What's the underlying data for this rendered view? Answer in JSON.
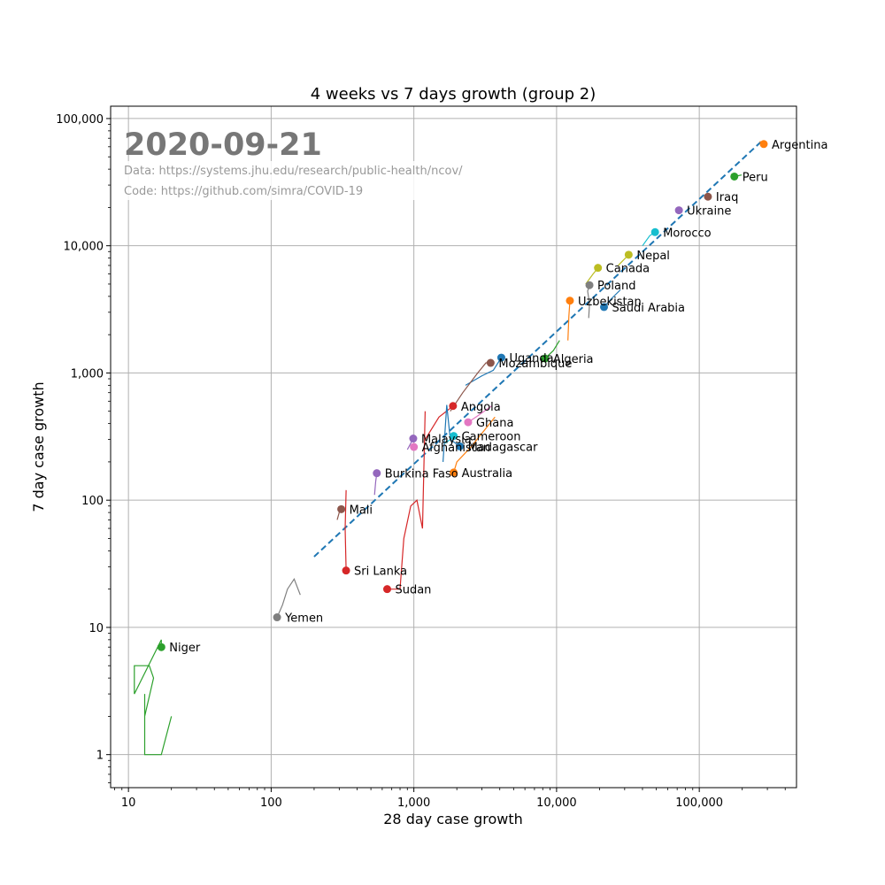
{
  "chart_data": {
    "type": "scatter",
    "title": "4 weeks vs 7 days growth (group 2)",
    "xlabel": "28 day case growth",
    "ylabel": "7 day case growth",
    "x_scale": "log",
    "y_scale": "log",
    "xlim": [
      7.5,
      480000
    ],
    "ylim": [
      0.55,
      125000
    ],
    "grid": true,
    "x_ticks": [
      10,
      100,
      1000,
      10000,
      100000
    ],
    "x_tick_labels": [
      "10",
      "100",
      "1,000",
      "10,000",
      "100,000"
    ],
    "y_ticks": [
      1,
      10,
      100,
      1000,
      10000,
      100000
    ],
    "y_tick_labels": [
      "1",
      "10",
      "100",
      "1,000",
      "10,000",
      "100,000"
    ],
    "annotations": {
      "date": "2020-09-21",
      "data_source": "Data: https://systems.jhu.edu/research/public-health/ncov/",
      "code_source": "Code: https://github.com/simra/COVID-19"
    },
    "trend_line": {
      "x": [
        200,
        280000
      ],
      "y": [
        36,
        68000
      ],
      "color": "#1f77b4",
      "style": "dashed"
    },
    "series": [
      {
        "name": "Argentina",
        "x": 283000,
        "y": 63000,
        "color": "#ff7f0e",
        "trail": [
          [
            265000,
            66000
          ],
          [
            283000,
            63000
          ]
        ]
      },
      {
        "name": "Peru",
        "x": 176000,
        "y": 35000,
        "color": "#2ca02c",
        "trail": [
          [
            198000,
            36000
          ],
          [
            176000,
            35000
          ]
        ]
      },
      {
        "name": "Iraq",
        "x": 115000,
        "y": 24300,
        "color": "#8c564b",
        "trail": [
          [
            112000,
            24000
          ],
          [
            115000,
            24300
          ]
        ]
      },
      {
        "name": "Ukraine",
        "x": 72000,
        "y": 19000,
        "color": "#9467bd",
        "trail": [
          [
            70000,
            18500
          ],
          [
            72000,
            19000
          ]
        ]
      },
      {
        "name": "Morocco",
        "x": 49000,
        "y": 12800,
        "color": "#17becf",
        "trail": [
          [
            40000,
            10000
          ],
          [
            45000,
            12000
          ],
          [
            49000,
            12800
          ]
        ]
      },
      {
        "name": "Nepal",
        "x": 32000,
        "y": 8500,
        "color": "#bcbd22",
        "trail": [
          [
            27000,
            7000
          ],
          [
            32000,
            8500
          ]
        ]
      },
      {
        "name": "Canada",
        "x": 19500,
        "y": 6700,
        "color": "#bcbd22",
        "trail": [
          [
            16000,
            5000
          ],
          [
            18000,
            6000
          ],
          [
            19500,
            6700
          ]
        ]
      },
      {
        "name": "Poland",
        "x": 17000,
        "y": 4900,
        "color": "#7f7f7f",
        "trail": [
          [
            16800,
            2700
          ],
          [
            17000,
            3500
          ],
          [
            16500,
            4400
          ],
          [
            17000,
            4900
          ]
        ]
      },
      {
        "name": "Uzbekistan",
        "x": 12400,
        "y": 3700,
        "color": "#ff7f0e",
        "trail": [
          [
            12000,
            1800
          ],
          [
            12200,
            2800
          ],
          [
            12400,
            3700
          ]
        ]
      },
      {
        "name": "Saudi Arabia",
        "x": 21500,
        "y": 3300,
        "color": "#1f77b4",
        "trail": [
          [
            28000,
            4500
          ],
          [
            24000,
            3800
          ],
          [
            21500,
            3300
          ]
        ]
      },
      {
        "name": "Algeria",
        "x": 8300,
        "y": 1300,
        "color": "#2ca02c",
        "trail": [
          [
            10500,
            1800
          ],
          [
            9500,
            1500
          ],
          [
            8300,
            1300
          ]
        ]
      },
      {
        "name": "Uganda",
        "x": 4100,
        "y": 1320,
        "color": "#1f77b4",
        "trail": [
          [
            2300,
            800
          ],
          [
            3000,
            950
          ],
          [
            3600,
            1050
          ],
          [
            4100,
            1320
          ]
        ]
      },
      {
        "name": "Mozambique",
        "x": 3450,
        "y": 1200,
        "color": "#8c564b",
        "trail": [
          [
            1800,
            500
          ],
          [
            2200,
            700
          ],
          [
            2800,
            1000
          ],
          [
            3200,
            1200
          ],
          [
            3450,
            1200
          ]
        ]
      },
      {
        "name": "Angola",
        "x": 1880,
        "y": 550,
        "color": "#d62728",
        "trail": [
          [
            1200,
            300
          ],
          [
            1500,
            450
          ],
          [
            1880,
            550
          ]
        ]
      },
      {
        "name": "Ghana",
        "x": 2400,
        "y": 410,
        "color": "#e377c2",
        "trail": [
          [
            3500,
            550
          ],
          [
            2800,
            460
          ],
          [
            2400,
            410
          ]
        ]
      },
      {
        "name": "Cameroon",
        "x": 1900,
        "y": 320,
        "color": "#17becf",
        "trail": [
          [
            1650,
            280
          ],
          [
            1800,
            300
          ],
          [
            1900,
            320
          ]
        ]
      },
      {
        "name": "Malaysia",
        "x": 990,
        "y": 305,
        "color": "#9467bd",
        "trail": [
          [
            900,
            250
          ],
          [
            990,
            305
          ]
        ]
      },
      {
        "name": "Madagascar",
        "x": 2100,
        "y": 265,
        "color": "#1f77b4",
        "trail": [
          [
            1600,
            200
          ],
          [
            1700,
            560
          ],
          [
            1800,
            300
          ],
          [
            2100,
            265
          ]
        ]
      },
      {
        "name": "Afghanistan",
        "x": 1000,
        "y": 262,
        "color": "#e377c2",
        "trail": [
          [
            1050,
            250
          ],
          [
            1000,
            262
          ]
        ]
      },
      {
        "name": "Burkina Faso",
        "x": 550,
        "y": 163,
        "color": "#9467bd",
        "trail": [
          [
            530,
            110
          ],
          [
            540,
            140
          ],
          [
            550,
            163
          ]
        ]
      },
      {
        "name": "Australia",
        "x": 1900,
        "y": 165,
        "color": "#ff7f0e",
        "trail": [
          [
            3700,
            450
          ],
          [
            2500,
            260
          ],
          [
            2000,
            200
          ],
          [
            1900,
            165
          ]
        ]
      },
      {
        "name": "Mali",
        "x": 310,
        "y": 85,
        "color": "#8c564b",
        "trail": [
          [
            290,
            70
          ],
          [
            300,
            80
          ],
          [
            310,
            85
          ]
        ]
      },
      {
        "name": "Sri Lanka",
        "x": 335,
        "y": 28,
        "color": "#d62728",
        "trail": [
          [
            335,
            120
          ],
          [
            330,
            60
          ],
          [
            335,
            28
          ]
        ]
      },
      {
        "name": "Sudan",
        "x": 650,
        "y": 20,
        "color": "#d62728",
        "trail": [
          [
            1200,
            500
          ],
          [
            1150,
            60
          ],
          [
            1050,
            100
          ],
          [
            950,
            90
          ],
          [
            850,
            50
          ],
          [
            800,
            20
          ],
          [
            650,
            20
          ]
        ]
      },
      {
        "name": "Yemen",
        "x": 110,
        "y": 12,
        "color": "#7f7f7f",
        "trail": [
          [
            160,
            18
          ],
          [
            145,
            24
          ],
          [
            130,
            20
          ],
          [
            120,
            15
          ],
          [
            110,
            12
          ]
        ]
      },
      {
        "name": "Niger",
        "x": 17,
        "y": 7,
        "color": "#2ca02c",
        "trail": [
          [
            20,
            2
          ],
          [
            17,
            1
          ],
          [
            13,
            1
          ],
          [
            13,
            3
          ],
          [
            13,
            2
          ],
          [
            15,
            4
          ],
          [
            14,
            5
          ],
          [
            11,
            5
          ],
          [
            11,
            3
          ],
          [
            17,
            8
          ],
          [
            17,
            7
          ]
        ]
      }
    ]
  }
}
